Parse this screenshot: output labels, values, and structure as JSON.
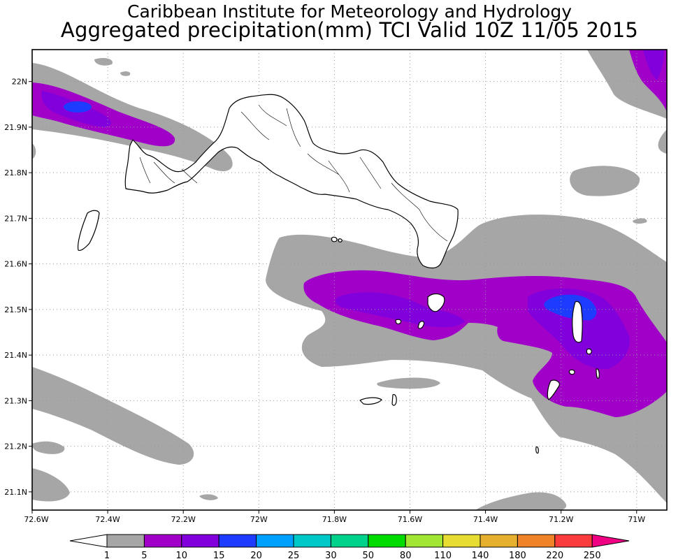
{
  "header": {
    "line1": "Caribbean Institute for Meteorology and Hydrology",
    "line2": "Aggregated precipitation(mm) TCI Valid 10Z 11/05 2015"
  },
  "map": {
    "region": "Turks and Caicos Islands",
    "lon_range": [
      -72.6,
      -70.92
    ],
    "lat_range": [
      21.06,
      22.07
    ],
    "lon_ticks": [
      "72.6W",
      "72.4W",
      "72.2W",
      "72W",
      "71.8W",
      "71.6W",
      "71.4W",
      "71.2W",
      "71W"
    ],
    "lat_ticks": [
      "22N",
      "21.9N",
      "21.8N",
      "21.7N",
      "21.6N",
      "21.5N",
      "21.4N",
      "21.3N",
      "21.2N",
      "21.1N"
    ],
    "grid": "dotted"
  },
  "legend": {
    "labels": [
      "1",
      "5",
      "10",
      "15",
      "20",
      "25",
      "30",
      "50",
      "80",
      "110",
      "140",
      "180",
      "220",
      "250"
    ],
    "colors": [
      "#a6a6a6",
      "#a000c8",
      "#8200dc",
      "#1e3cff",
      "#00a0ff",
      "#00c8c8",
      "#00d28c",
      "#00dc00",
      "#a0e632",
      "#e6dc32",
      "#e6af2d",
      "#f08228",
      "#fa3c3c",
      "#f00082"
    ]
  }
}
